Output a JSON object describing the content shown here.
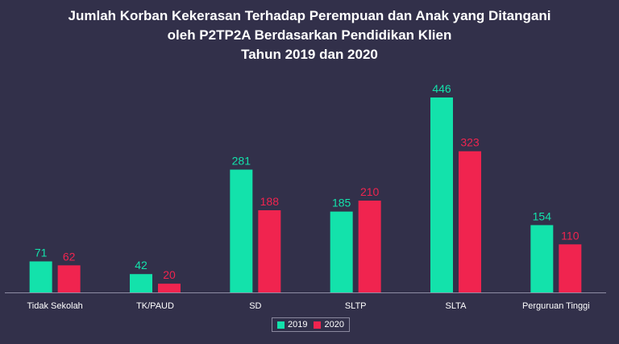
{
  "chart_data": {
    "type": "bar",
    "title_lines": [
      "Jumlah Korban Kekerasan Terhadap Perempuan dan Anak yang Ditangani",
      "oleh P2TP2A Berdasarkan Pendidikan Klien",
      "Tahun 2019 dan 2020"
    ],
    "categories": [
      "Tidak Sekolah",
      "TK/PAUD",
      "SD",
      "SLTP",
      "SLTA",
      "Perguruan Tinggi"
    ],
    "series": [
      {
        "name": "2019",
        "color": "#13e2ab",
        "values": [
          71,
          42,
          281,
          185,
          446,
          154
        ]
      },
      {
        "name": "2020",
        "color": "#f0244f",
        "values": [
          62,
          20,
          188,
          210,
          323,
          110
        ]
      }
    ],
    "ylim": [
      0,
      446
    ],
    "grid": false,
    "legend_position": "bottom"
  }
}
